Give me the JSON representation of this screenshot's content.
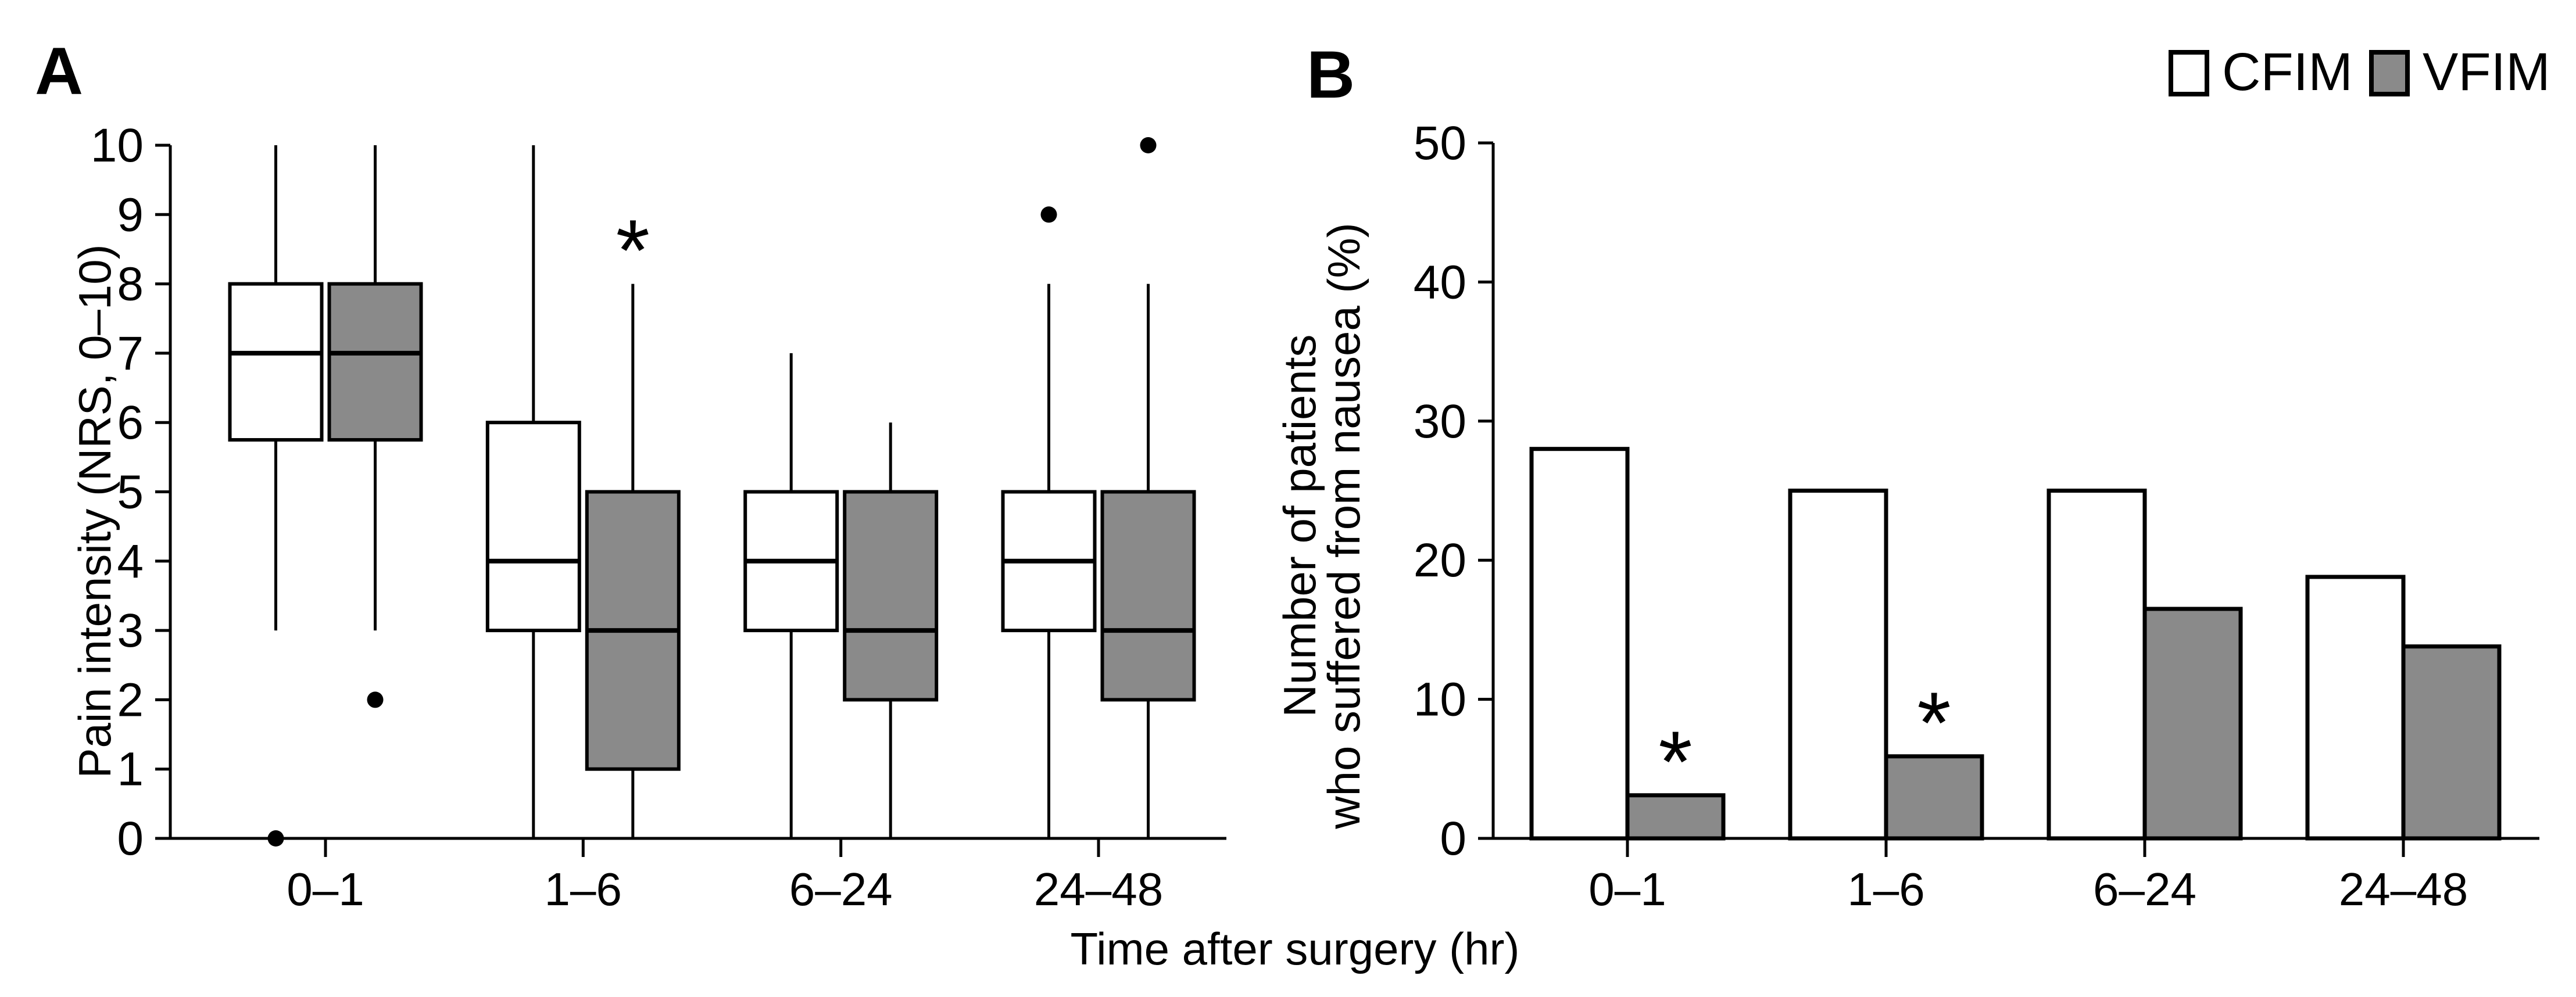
{
  "figure": {
    "panel_a_letter": "A",
    "panel_b_letter": "B",
    "x_axis_title": "Time after surgery (hr)",
    "background": "#ffffff",
    "ink": "#000000",
    "gray": "#8a8a8a"
  },
  "legend": {
    "position": "top-right",
    "items": [
      {
        "label": "CFIM",
        "fill": "#ffffff"
      },
      {
        "label": "VFIM",
        "fill": "#8a8a8a"
      }
    ]
  },
  "chart_data": [
    {
      "id": "panel_a",
      "type": "boxplot",
      "panel_label": "A",
      "ylabel": "Pain intensity (NRS, 0–10)",
      "xlabel": "Time after surgery (hr)",
      "ylim": [
        0,
        10
      ],
      "yticks": [
        0,
        1,
        2,
        3,
        4,
        5,
        6,
        7,
        8,
        9,
        10
      ],
      "grid": false,
      "categories": [
        "0–1",
        "1–6",
        "6–24",
        "24–48"
      ],
      "series": [
        {
          "name": "CFIM",
          "fill": "#ffffff",
          "boxes": [
            {
              "low": 3,
              "q1": 5.75,
              "median": 7,
              "q3": 8,
              "high": 10,
              "outliers": [
                0
              ],
              "significance": ""
            },
            {
              "low": 0,
              "q1": 3,
              "median": 4,
              "q3": 6,
              "high": 10,
              "outliers": [],
              "significance": ""
            },
            {
              "low": 0,
              "q1": 3,
              "median": 4,
              "q3": 5,
              "high": 7,
              "outliers": [],
              "significance": ""
            },
            {
              "low": 0,
              "q1": 3,
              "median": 4,
              "q3": 5,
              "high": 8,
              "outliers": [
                9
              ],
              "significance": ""
            }
          ]
        },
        {
          "name": "VFIM",
          "fill": "#8a8a8a",
          "boxes": [
            {
              "low": 3,
              "q1": 5.75,
              "median": 7,
              "q3": 8,
              "high": 10,
              "outliers": [
                2
              ],
              "significance": ""
            },
            {
              "low": 0,
              "q1": 1,
              "median": 3,
              "q3": 5,
              "high": 8,
              "outliers": [],
              "significance": "*"
            },
            {
              "low": 0,
              "q1": 2,
              "median": 3,
              "q3": 5,
              "high": 6,
              "outliers": [],
              "significance": ""
            },
            {
              "low": 0,
              "q1": 2,
              "median": 3,
              "q3": 5,
              "high": 8,
              "outliers": [
                10
              ],
              "significance": ""
            }
          ]
        }
      ]
    },
    {
      "id": "panel_b",
      "type": "bar",
      "panel_label": "B",
      "ylabel_lines": [
        "Number of patients",
        "who suffered from nausea (%)"
      ],
      "xlabel": "Time after surgery (hr)",
      "ylim": [
        0,
        50
      ],
      "yticks": [
        0,
        10,
        20,
        30,
        40,
        50
      ],
      "grid": false,
      "categories": [
        "0–1",
        "1–6",
        "6–24",
        "24–48"
      ],
      "series": [
        {
          "name": "CFIM",
          "fill": "#ffffff",
          "values": [
            28,
            25,
            25,
            18.8
          ],
          "significance": [
            "",
            "",
            "",
            ""
          ]
        },
        {
          "name": "VFIM",
          "fill": "#8a8a8a",
          "values": [
            3.1,
            5.9,
            16.5,
            13.8
          ],
          "significance": [
            "*",
            "*",
            "",
            ""
          ]
        }
      ]
    }
  ]
}
